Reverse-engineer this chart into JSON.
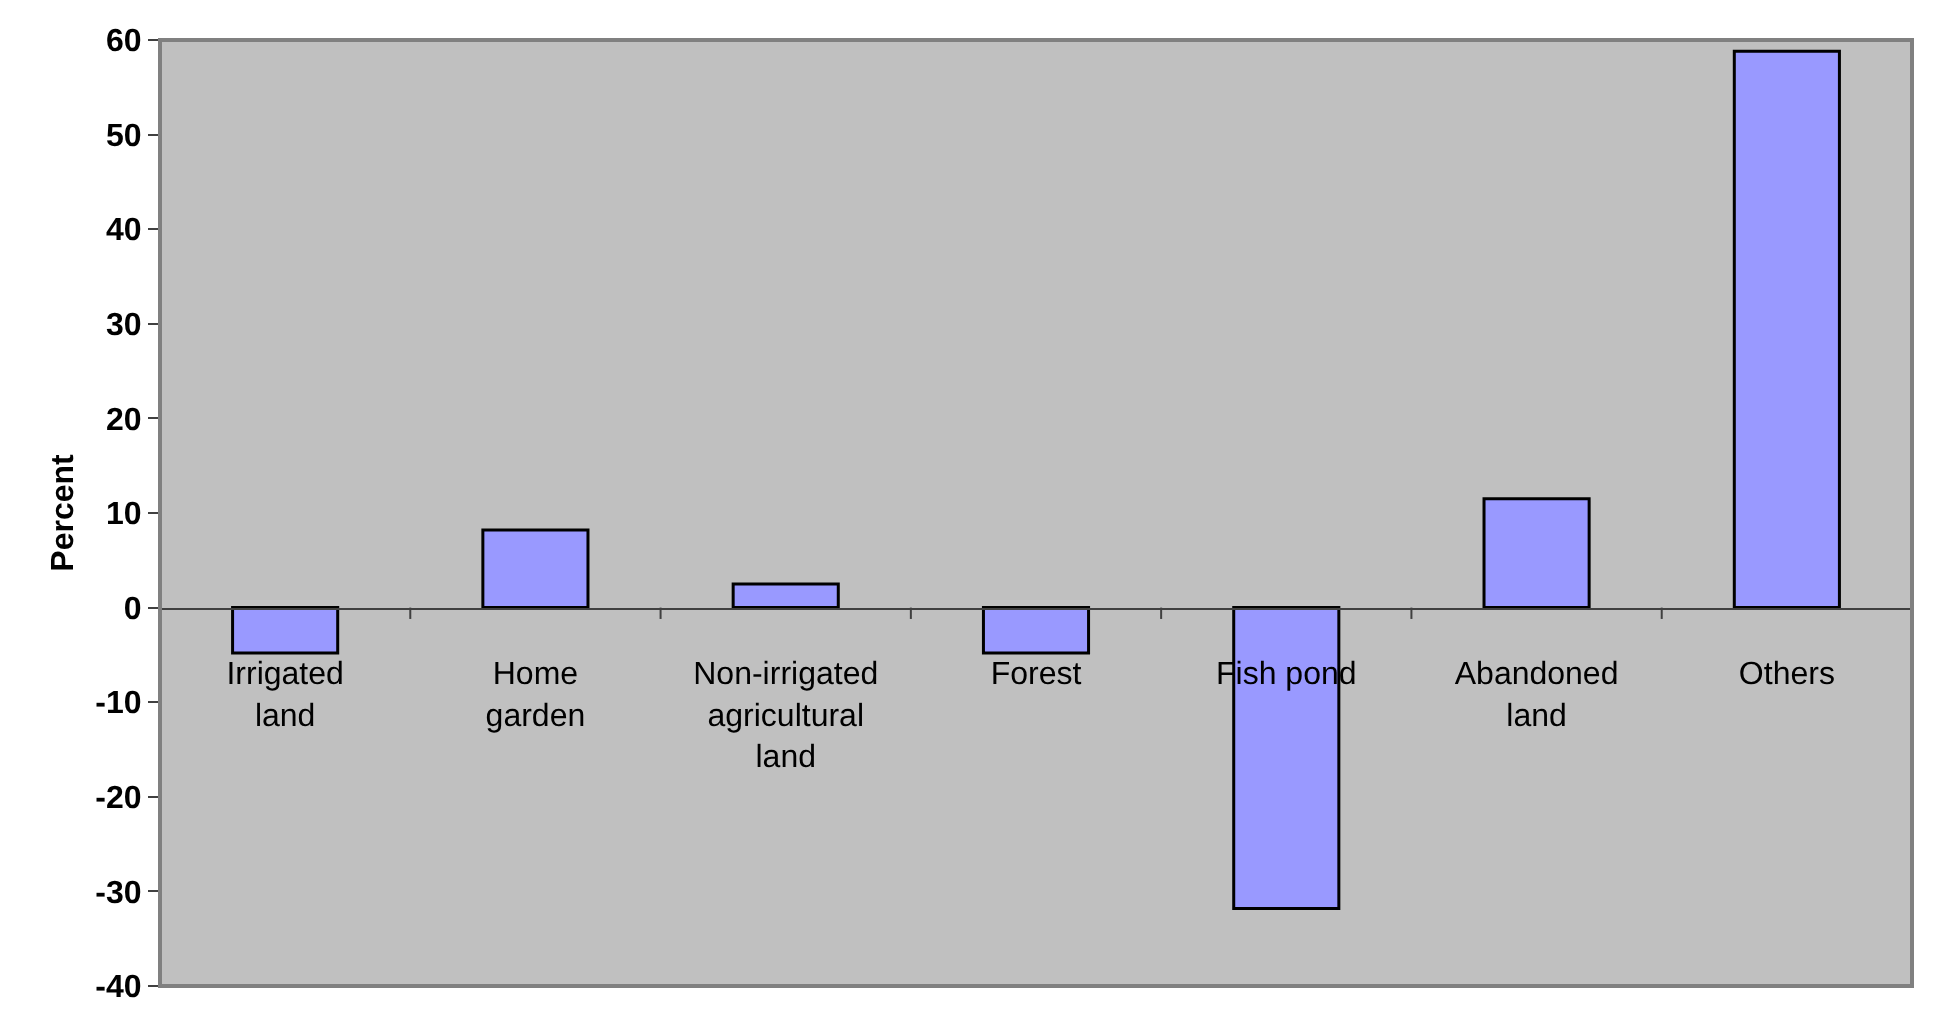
{
  "chart_data": {
    "type": "bar",
    "ylabel": "Percent",
    "categories": [
      "Irrigated land",
      "Home garden",
      "Non-irrigated agricultural land",
      "Forest",
      "Fish pond",
      "Abandoned land",
      "Others"
    ],
    "values": [
      -4.8,
      8.2,
      2.5,
      -4.8,
      -31.8,
      11.5,
      58.8
    ],
    "color": "#9999ff",
    "ylim": [
      -40,
      60
    ],
    "yticks": [
      -40,
      -30,
      -20,
      -10,
      0,
      10,
      20,
      30,
      40,
      50,
      60
    ],
    "grid": false,
    "legend": false
  }
}
